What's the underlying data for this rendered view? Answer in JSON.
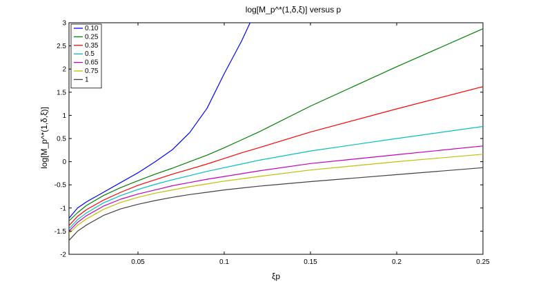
{
  "chart_data": {
    "type": "line",
    "title": "log[M_p^*(1,δ,ξ)] versus p",
    "xlabel": "ξp",
    "ylabel": "log[M_p^*(1,δ,ξ)]",
    "xlim": [
      0.01,
      0.25
    ],
    "ylim": [
      -2,
      3
    ],
    "xticks": [
      0.05,
      0.1,
      0.15,
      0.2,
      0.25
    ],
    "xtick_labels": [
      "0.05",
      "0.1",
      "0.15",
      "0.2",
      "0.25"
    ],
    "yticks": [
      -2,
      -1.5,
      -1,
      -0.5,
      0,
      0.5,
      1,
      1.5,
      2,
      2.5,
      3
    ],
    "ytick_labels": [
      "-2",
      "-1.5",
      "-1",
      "-0.5",
      "0",
      "0.5",
      "1",
      "1.5",
      "2",
      "2.5",
      "3"
    ],
    "grid": false,
    "legend_position": "top-left",
    "x": [
      0.01,
      0.015,
      0.02,
      0.03,
      0.04,
      0.05,
      0.06,
      0.07,
      0.08,
      0.09,
      0.1,
      0.11,
      0.12,
      0.15,
      0.2,
      0.25
    ],
    "series": [
      {
        "name": "0.10",
        "color": "#0000ff",
        "values": [
          -1.22,
          -1.0,
          -0.87,
          -0.66,
          -0.45,
          -0.24,
          0.0,
          0.26,
          0.63,
          1.15,
          1.9,
          2.6,
          3.4,
          null,
          null,
          null
        ]
      },
      {
        "name": "0.25",
        "color": "#008000",
        "values": [
          -1.28,
          -1.1,
          -0.95,
          -0.73,
          -0.56,
          -0.41,
          -0.27,
          -0.14,
          0.0,
          0.14,
          0.3,
          0.47,
          0.64,
          1.2,
          2.05,
          2.87
        ]
      },
      {
        "name": "0.35",
        "color": "#ff0000",
        "values": [
          -1.38,
          -1.18,
          -1.04,
          -0.83,
          -0.66,
          -0.51,
          -0.39,
          -0.27,
          -0.16,
          -0.05,
          0.07,
          0.19,
          0.3,
          0.64,
          1.14,
          1.62
        ]
      },
      {
        "name": "0.5",
        "color": "#00bfbf",
        "values": [
          -1.45,
          -1.25,
          -1.11,
          -0.89,
          -0.73,
          -0.6,
          -0.49,
          -0.39,
          -0.3,
          -0.21,
          -0.13,
          -0.05,
          0.03,
          0.23,
          0.5,
          0.76
        ]
      },
      {
        "name": "0.65",
        "color": "#bf00bf",
        "values": [
          -1.5,
          -1.31,
          -1.17,
          -0.96,
          -0.81,
          -0.7,
          -0.61,
          -0.52,
          -0.45,
          -0.38,
          -0.32,
          -0.26,
          -0.2,
          -0.04,
          0.15,
          0.34
        ]
      },
      {
        "name": "0.75",
        "color": "#bfbf00",
        "values": [
          -1.55,
          -1.37,
          -1.24,
          -1.03,
          -0.88,
          -0.77,
          -0.68,
          -0.61,
          -0.54,
          -0.48,
          -0.42,
          -0.37,
          -0.32,
          -0.18,
          0.0,
          0.16
        ]
      },
      {
        "name": "1",
        "color": "#404040",
        "values": [
          -1.7,
          -1.5,
          -1.37,
          -1.16,
          -1.02,
          -0.92,
          -0.84,
          -0.77,
          -0.71,
          -0.66,
          -0.61,
          -0.57,
          -0.53,
          -0.43,
          -0.28,
          -0.13
        ]
      }
    ]
  }
}
